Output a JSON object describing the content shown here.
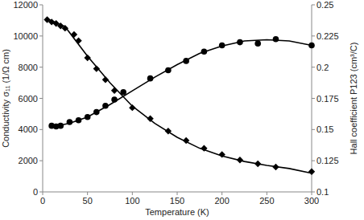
{
  "chart_data": {
    "type": "scatter",
    "x_label": "Temperature (K)",
    "y_label": "Conductivity σ₁₁ (1/Ω cm)",
    "y2_label": "Hall coefficient P123 (cm³/C)",
    "xlim": [
      0,
      300
    ],
    "xticks": [
      0,
      50,
      100,
      150,
      200,
      250,
      300
    ],
    "ylim": [
      0,
      12000
    ],
    "yticks": [
      0,
      2000,
      4000,
      6000,
      8000,
      10000,
      12000
    ],
    "y2lim": [
      0.1,
      0.25
    ],
    "y2ticks": [
      0.1,
      0.125,
      0.15,
      0.175,
      0.2,
      0.225,
      0.25
    ],
    "grid": false,
    "series": [
      {
        "type": "scatter",
        "marker": "diamond",
        "color": "#000000",
        "x": [
          5,
          10,
          15,
          20,
          25,
          35,
          40,
          50,
          60,
          70,
          80,
          100,
          120,
          140,
          160,
          180,
          200,
          220,
          240,
          260,
          300
        ],
        "values": [
          11050,
          10900,
          10800,
          10650,
          10500,
          10100,
          9700,
          8600,
          7900,
          7200,
          6500,
          5400,
          4700,
          3900,
          3300,
          2800,
          2400,
          2050,
          1800,
          1600,
          1300
        ]
      },
      {
        "type": "line",
        "line_style": "solid",
        "color": "#000000",
        "x": [
          5,
          25,
          50,
          75,
          100,
          125,
          150,
          175,
          200,
          225,
          250,
          275,
          300
        ],
        "values": [
          11100,
          10600,
          8700,
          7000,
          5500,
          4400,
          3500,
          2800,
          2300,
          1950,
          1700,
          1500,
          1200
        ]
      },
      {
        "type": "scatter",
        "marker": "circle",
        "color": "#000000",
        "axis": "y2",
        "x": [
          10,
          15,
          20,
          30,
          40,
          50,
          60,
          70,
          80,
          90,
          120,
          140,
          160,
          180,
          200,
          220,
          240,
          260,
          300
        ],
        "values": [
          0.153,
          0.1525,
          0.153,
          0.156,
          0.1575,
          0.16,
          0.164,
          0.169,
          0.174,
          0.18,
          0.191,
          0.1975,
          0.205,
          0.2125,
          0.2175,
          0.22,
          0.219,
          0.2225,
          0.2175
        ]
      },
      {
        "type": "line",
        "line_style": "solid",
        "color": "#000000",
        "axis": "y2",
        "x": [
          10,
          30,
          50,
          75,
          100,
          125,
          150,
          175,
          200,
          225,
          250,
          275,
          300
        ],
        "values": [
          0.152,
          0.155,
          0.16,
          0.17,
          0.181,
          0.192,
          0.202,
          0.211,
          0.217,
          0.221,
          0.222,
          0.221,
          0.2175
        ]
      }
    ]
  }
}
